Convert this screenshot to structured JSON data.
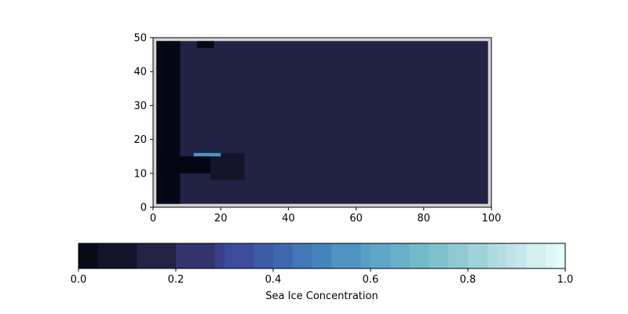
{
  "chart_data": [
    {
      "type": "heatmap",
      "title": "",
      "xlabel": "",
      "ylabel": "",
      "xlim": [
        0,
        100
      ],
      "ylim": [
        0,
        50
      ],
      "x_ticks": [
        0,
        20,
        40,
        60,
        80,
        100
      ],
      "y_ticks": [
        0,
        10,
        20,
        30,
        40,
        50
      ],
      "grid": false,
      "background_color": "#d4d4d4",
      "ocean_value": 0.15,
      "regions": [
        {
          "name": "western land strip",
          "x": [
            1,
            8
          ],
          "y": [
            1,
            49
          ],
          "value": 0.01
        },
        {
          "name": "inner land strip",
          "x": [
            3,
            7
          ],
          "y": [
            2,
            48
          ],
          "value": 0.0
        },
        {
          "name": "southern peninsula",
          "x": [
            2,
            23
          ],
          "y": [
            10,
            15
          ],
          "value": 0.0
        },
        {
          "name": "peninsula fringe",
          "x": [
            17,
            27
          ],
          "y": [
            8,
            16
          ],
          "value": 0.08
        },
        {
          "name": "northern notch",
          "x": [
            13,
            18
          ],
          "y": [
            47,
            49
          ],
          "value": 0.01
        },
        {
          "name": "ice streak",
          "x": [
            12,
            20
          ],
          "y": [
            15,
            16
          ],
          "value": 0.55
        }
      ]
    },
    {
      "type": "colorbar",
      "label": "Sea Ice Concentration",
      "range": [
        0,
        1
      ],
      "ticks": [
        "0.0",
        "0.2",
        "0.4",
        "0.6",
        "0.8",
        "1.0"
      ],
      "colormap": "ice",
      "boundaries": [
        0,
        0.04,
        0.12,
        0.2,
        0.28,
        0.3,
        0.36,
        0.4,
        0.44,
        0.48,
        0.52,
        0.58,
        0.6,
        0.64,
        0.68,
        0.72,
        0.76,
        0.8,
        0.84,
        0.86,
        0.88,
        0.9,
        0.92,
        0.96,
        0.98,
        1.0
      ]
    }
  ]
}
